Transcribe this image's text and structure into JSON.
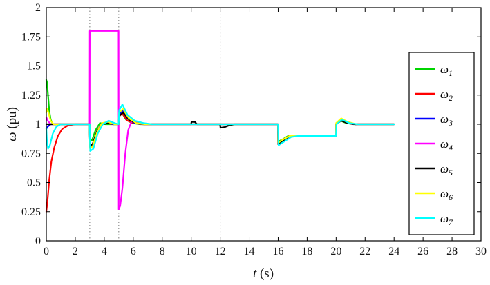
{
  "figure": {
    "background": "#ffffff",
    "axes_color": "#000000",
    "event_line_color": "#777777"
  },
  "chart_data": {
    "type": "line",
    "title": "",
    "xlabel_var": "t",
    "xlabel_unit": " (s)",
    "ylabel_var": "ω",
    "ylabel_unit": " (pu)",
    "xlim": [
      0,
      30
    ],
    "ylim": [
      0,
      2
    ],
    "xticks": [
      0,
      2,
      4,
      6,
      8,
      10,
      12,
      14,
      16,
      18,
      20,
      22,
      24,
      26,
      28,
      30
    ],
    "yticks": [
      0,
      0.25,
      0.5,
      0.75,
      1,
      1.25,
      1.5,
      1.75,
      2
    ],
    "grid": false,
    "event_lines_x": [
      3,
      5,
      12
    ],
    "legend_position": "right-inside",
    "series": [
      {
        "name": "ω1",
        "label_base": "ω",
        "label_sub": "1",
        "color": "#00d400",
        "points": [
          [
            0,
            1.38
          ],
          [
            0.05,
            1.36
          ],
          [
            0.1,
            1.28
          ],
          [
            0.2,
            1.12
          ],
          [
            0.3,
            1.04
          ],
          [
            0.45,
            1.0
          ],
          [
            1,
            1
          ],
          [
            2.99,
            1
          ],
          [
            3.02,
            0.88
          ],
          [
            3.15,
            0.86
          ],
          [
            3.4,
            0.95
          ],
          [
            3.7,
            1.01
          ],
          [
            4.1,
            1
          ],
          [
            4.99,
            1
          ],
          [
            5.02,
            1.06
          ],
          [
            5.2,
            1.1
          ],
          [
            5.5,
            1.04
          ],
          [
            5.9,
            1.01
          ],
          [
            6.5,
            1
          ],
          [
            15.99,
            1
          ],
          [
            16,
            0.85
          ],
          [
            16.3,
            0.87
          ],
          [
            16.7,
            0.9
          ],
          [
            17.2,
            0.9
          ],
          [
            19.99,
            0.9
          ],
          [
            20,
            1.0
          ],
          [
            20.3,
            1.03
          ],
          [
            20.7,
            1.01
          ],
          [
            21.2,
            1
          ],
          [
            24,
            1
          ]
        ]
      },
      {
        "name": "ω2",
        "label_base": "ω",
        "label_sub": "2",
        "color": "#ff0000",
        "points": [
          [
            0,
            0.25
          ],
          [
            0.08,
            0.34
          ],
          [
            0.2,
            0.52
          ],
          [
            0.35,
            0.68
          ],
          [
            0.55,
            0.8
          ],
          [
            0.8,
            0.9
          ],
          [
            1.1,
            0.96
          ],
          [
            1.5,
            0.99
          ],
          [
            2,
            1
          ],
          [
            2.99,
            1
          ],
          [
            3.02,
            0.82
          ],
          [
            3.2,
            0.83
          ],
          [
            3.5,
            0.94
          ],
          [
            3.8,
            1.0
          ],
          [
            4.2,
            1.01
          ],
          [
            4.6,
            1
          ],
          [
            4.99,
            1
          ],
          [
            5.02,
            1.07
          ],
          [
            5.25,
            1.09
          ],
          [
            5.6,
            1.03
          ],
          [
            6,
            1.01
          ],
          [
            6.6,
            1
          ],
          [
            15.99,
            1
          ],
          [
            16,
            0.84
          ],
          [
            16.35,
            0.87
          ],
          [
            16.8,
            0.9
          ],
          [
            19.99,
            0.9
          ],
          [
            20,
            1.0
          ],
          [
            20.35,
            1.03
          ],
          [
            20.8,
            1.01
          ],
          [
            21.3,
            1
          ],
          [
            24,
            1
          ]
        ]
      },
      {
        "name": "ω3",
        "label_base": "ω",
        "label_sub": "3",
        "color": "#0000ff",
        "points": [
          [
            0,
            0.96
          ],
          [
            0.1,
            0.98
          ],
          [
            0.3,
            1.0
          ],
          [
            2.99,
            1
          ],
          [
            3.02,
            0.8
          ],
          [
            3.2,
            0.82
          ],
          [
            3.5,
            0.93
          ],
          [
            3.85,
            1.0
          ],
          [
            4.2,
            1.02
          ],
          [
            4.6,
            1
          ],
          [
            4.99,
            1
          ],
          [
            5.02,
            1.08
          ],
          [
            5.25,
            1.12
          ],
          [
            5.6,
            1.05
          ],
          [
            6.1,
            1.01
          ],
          [
            6.7,
            1
          ],
          [
            15.99,
            1
          ],
          [
            16,
            0.83
          ],
          [
            16.35,
            0.86
          ],
          [
            16.8,
            0.9
          ],
          [
            19.99,
            0.9
          ],
          [
            20,
            1.0
          ],
          [
            20.35,
            1.04
          ],
          [
            20.8,
            1.01
          ],
          [
            21.3,
            1
          ],
          [
            24,
            1
          ]
        ]
      },
      {
        "name": "ω4",
        "label_base": "ω",
        "label_sub": "4",
        "color": "#ff00ff",
        "points": [
          [
            0,
            1.06
          ],
          [
            0.1,
            1.03
          ],
          [
            0.3,
            1.0
          ],
          [
            2.99,
            1
          ],
          [
            3,
            1.8
          ],
          [
            4.99,
            1.8
          ],
          [
            5,
            0.27
          ],
          [
            5.1,
            0.3
          ],
          [
            5.25,
            0.45
          ],
          [
            5.45,
            0.75
          ],
          [
            5.65,
            0.95
          ],
          [
            5.9,
            1.03
          ],
          [
            6.3,
            1.01
          ],
          [
            6.8,
            1
          ],
          [
            15.99,
            1
          ],
          [
            16,
            0.83
          ],
          [
            16.35,
            0.86
          ],
          [
            16.8,
            0.9
          ],
          [
            19.99,
            0.9
          ],
          [
            20,
            1.0
          ],
          [
            20.35,
            1.04
          ],
          [
            20.8,
            1.01
          ],
          [
            21.3,
            1
          ],
          [
            24,
            1
          ]
        ]
      },
      {
        "name": "ω5",
        "label_base": "ω",
        "label_sub": "5",
        "color": "#000000",
        "points": [
          [
            0,
            1.0
          ],
          [
            2.99,
            1
          ],
          [
            3.02,
            0.81
          ],
          [
            3.2,
            0.83
          ],
          [
            3.5,
            0.94
          ],
          [
            3.85,
            1.0
          ],
          [
            4.3,
            1.01
          ],
          [
            4.99,
            1
          ],
          [
            5.02,
            1.07
          ],
          [
            5.3,
            1.1
          ],
          [
            5.7,
            1.04
          ],
          [
            6.2,
            1.01
          ],
          [
            6.8,
            1
          ],
          [
            9.99,
            1
          ],
          [
            10.02,
            1.02
          ],
          [
            10.25,
            1.02
          ],
          [
            10.4,
            1.0
          ],
          [
            11.99,
            1
          ],
          [
            12.02,
            0.97
          ],
          [
            12.3,
            0.975
          ],
          [
            12.6,
            0.99
          ],
          [
            13,
            1
          ],
          [
            15.99,
            1
          ],
          [
            16,
            0.83
          ],
          [
            16.35,
            0.86
          ],
          [
            16.8,
            0.9
          ],
          [
            19.99,
            0.9
          ],
          [
            20,
            1.0
          ],
          [
            20.35,
            1.03
          ],
          [
            20.8,
            1.01
          ],
          [
            21.3,
            1
          ],
          [
            24,
            1
          ]
        ]
      },
      {
        "name": "ω6",
        "label_base": "ω",
        "label_sub": "6",
        "color": "#ffff00",
        "points": [
          [
            0,
            1.1
          ],
          [
            0.06,
            1.13
          ],
          [
            0.15,
            1.1
          ],
          [
            0.3,
            1.03
          ],
          [
            0.5,
            1.0
          ],
          [
            2.99,
            1
          ],
          [
            3.02,
            0.79
          ],
          [
            3.2,
            0.81
          ],
          [
            3.5,
            0.93
          ],
          [
            3.85,
            1.01
          ],
          [
            4.25,
            1.02
          ],
          [
            4.7,
            1
          ],
          [
            4.99,
            1
          ],
          [
            5.02,
            1.1
          ],
          [
            5.3,
            1.13
          ],
          [
            5.7,
            1.05
          ],
          [
            6.2,
            1.01
          ],
          [
            6.8,
            1
          ],
          [
            15.99,
            1
          ],
          [
            16,
            0.84
          ],
          [
            16.35,
            0.87
          ],
          [
            16.8,
            0.9
          ],
          [
            19.99,
            0.9
          ],
          [
            20,
            1.01
          ],
          [
            20.35,
            1.05
          ],
          [
            20.8,
            1.02
          ],
          [
            21.4,
            1
          ],
          [
            24,
            1
          ]
        ]
      },
      {
        "name": "ω7",
        "label_base": "ω",
        "label_sub": "7",
        "color": "#00ffff",
        "points": [
          [
            0,
            0.97
          ],
          [
            0.05,
            0.85
          ],
          [
            0.12,
            0.79
          ],
          [
            0.25,
            0.82
          ],
          [
            0.45,
            0.92
          ],
          [
            0.7,
            0.98
          ],
          [
            1,
            1
          ],
          [
            2.99,
            1
          ],
          [
            3.03,
            0.77
          ],
          [
            3.25,
            0.79
          ],
          [
            3.55,
            0.92
          ],
          [
            3.9,
            1.0
          ],
          [
            4.3,
            1.03
          ],
          [
            4.7,
            1.01
          ],
          [
            4.99,
            1
          ],
          [
            5.03,
            1.12
          ],
          [
            5.25,
            1.17
          ],
          [
            5.6,
            1.08
          ],
          [
            6.1,
            1.03
          ],
          [
            6.7,
            1.01
          ],
          [
            7.3,
            1
          ],
          [
            15.99,
            1
          ],
          [
            16.03,
            0.82
          ],
          [
            16.4,
            0.85
          ],
          [
            16.9,
            0.89
          ],
          [
            17.4,
            0.9
          ],
          [
            19.99,
            0.9
          ],
          [
            20.03,
            1.0
          ],
          [
            20.4,
            1.04
          ],
          [
            20.9,
            1.01
          ],
          [
            21.5,
            1
          ],
          [
            24,
            1
          ]
        ]
      }
    ]
  }
}
